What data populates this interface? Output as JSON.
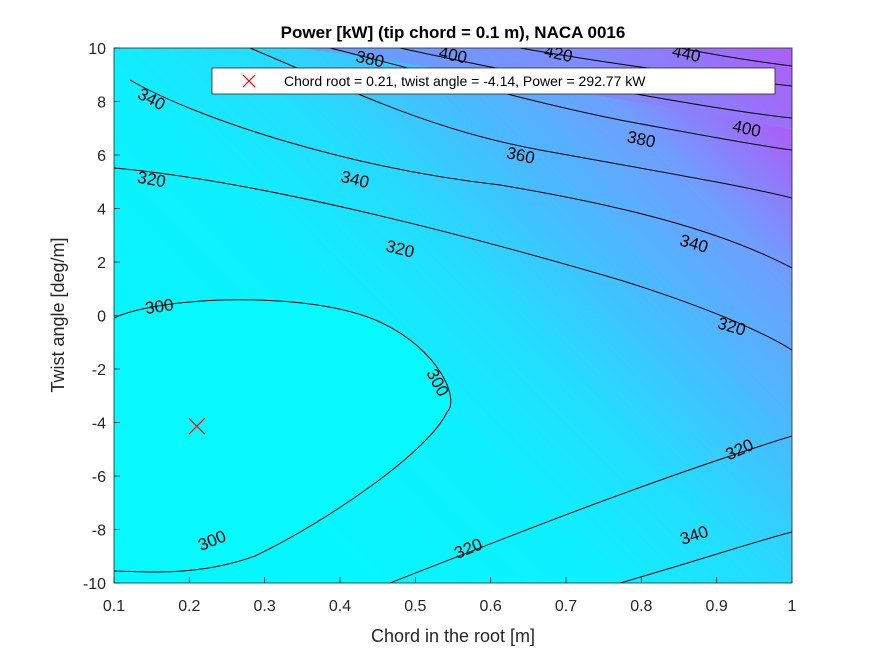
{
  "chart_data": {
    "type": "contour",
    "title": "Power [kW] (tip chord = 0.1 m), NACA 0016",
    "xlabel": "Chord in the root [m]",
    "ylabel": "Twist angle [deg/m]",
    "xlim": [
      0.1,
      1
    ],
    "ylim": [
      -10,
      10
    ],
    "xticks": [
      "0.1",
      "0.2",
      "0.3",
      "0.4",
      "0.5",
      "0.6",
      "0.7",
      "0.8",
      "0.9",
      "1"
    ],
    "yticks": [
      "10",
      "8",
      "6",
      "4",
      "2",
      "0",
      "-2",
      "-4",
      "-6",
      "-8",
      "-10"
    ],
    "colormap": "cool",
    "grid": false,
    "legend_position": "top-right",
    "contour_levels": [
      300,
      320,
      340,
      360,
      380,
      400,
      420,
      440
    ],
    "contour_labels": [
      {
        "text": "300",
        "x": 0.16,
        "y": 0.35,
        "angle": -8
      },
      {
        "text": "300",
        "x": 0.53,
        "y": -2.5,
        "angle": 62
      },
      {
        "text": "300",
        "x": 0.23,
        "y": -8.4,
        "angle": -22
      },
      {
        "text": "320",
        "x": 0.15,
        "y": 5.1,
        "angle": 10
      },
      {
        "text": "320",
        "x": 0.48,
        "y": 2.5,
        "angle": 14
      },
      {
        "text": "320",
        "x": 0.92,
        "y": -0.4,
        "angle": 16
      },
      {
        "text": "320",
        "x": 0.93,
        "y": -5.0,
        "angle": -24
      },
      {
        "text": "320",
        "x": 0.57,
        "y": -8.7,
        "angle": -22
      },
      {
        "text": "340",
        "x": 0.15,
        "y": 8.1,
        "angle": 28
      },
      {
        "text": "340",
        "x": 0.42,
        "y": 5.1,
        "angle": 14
      },
      {
        "text": "340",
        "x": 0.87,
        "y": 2.7,
        "angle": 16
      },
      {
        "text": "340",
        "x": 0.87,
        "y": -8.2,
        "angle": -18
      },
      {
        "text": "360",
        "x": 0.64,
        "y": 6.0,
        "angle": 12
      },
      {
        "text": "380",
        "x": 0.8,
        "y": 6.6,
        "angle": 12
      },
      {
        "text": "380",
        "x": 0.44,
        "y": 9.6,
        "angle": 12
      },
      {
        "text": "400",
        "x": 0.94,
        "y": 7.0,
        "angle": 12
      },
      {
        "text": "400",
        "x": 0.55,
        "y": 9.75,
        "angle": 12
      },
      {
        "text": "420",
        "x": 0.69,
        "y": 9.8,
        "angle": 12
      },
      {
        "text": "440",
        "x": 0.86,
        "y": 9.8,
        "angle": 12
      }
    ],
    "optimum": {
      "x": 0.21,
      "y": -4.14,
      "power": 292.77,
      "marker": "x",
      "color": "#ff0000"
    },
    "legend": [
      "Chord root = 0.21, twist angle = -4.14, Power = 292.77 kW"
    ]
  }
}
